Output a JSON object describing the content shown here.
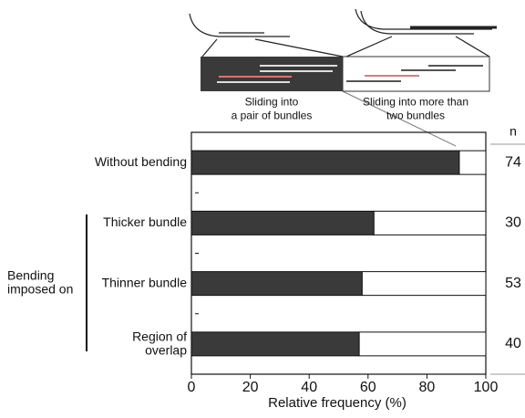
{
  "chart_data": {
    "type": "stacked-barh",
    "categories": [
      "Without bending",
      "Thicker bundle",
      "Thinner bundle",
      "Region of\noverlap"
    ],
    "group_label": "Bending\nimposed on",
    "series": [
      {
        "name": "Sliding into\na pair of bundles",
        "color": "#3a3a3a",
        "values": [
          91,
          62,
          58,
          57
        ]
      },
      {
        "name": "Sliding into more than\ntwo bundles",
        "color": "#ffffff",
        "values": [
          9,
          38,
          42,
          43
        ]
      }
    ],
    "xlabel": "Relative frequency (%)",
    "xlim": [
      0,
      100
    ],
    "xticks": [
      0,
      20,
      40,
      60,
      80,
      100
    ],
    "n_label": "n",
    "n_values": [
      74,
      30,
      53,
      40
    ]
  }
}
